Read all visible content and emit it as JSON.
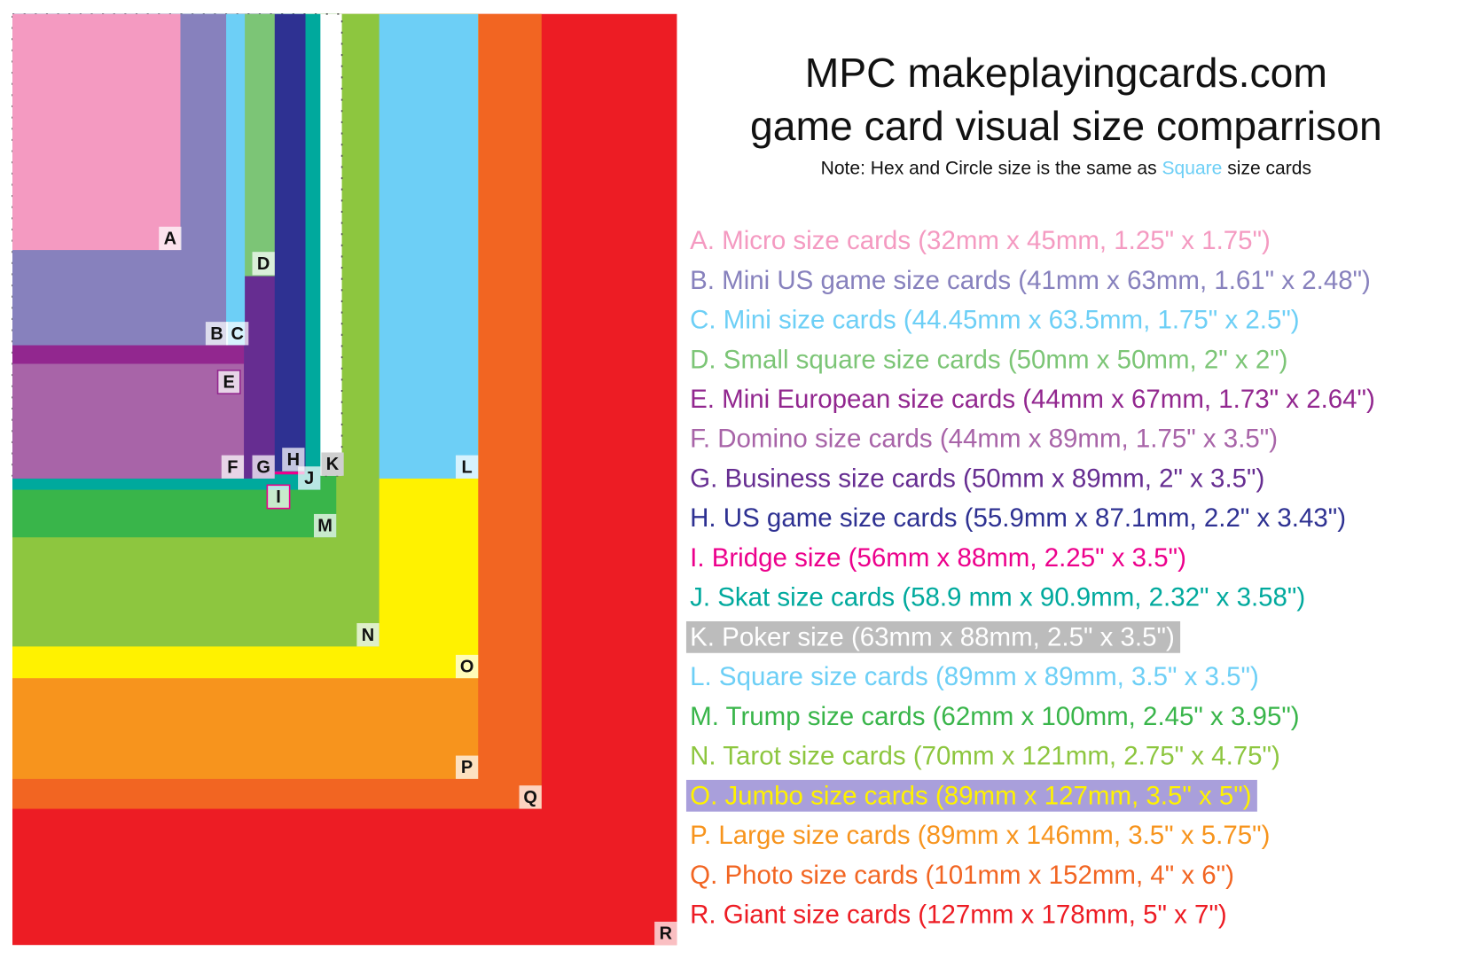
{
  "title": {
    "line1": "MPC makeplayingcards.com",
    "line2": "game card visual size comparrison"
  },
  "note": {
    "before": "Note: Hex and Circle size is the same as",
    "highlight": "Square",
    "after": "size cards"
  },
  "cards": [
    {
      "label": "A",
      "text": "A. Micro size cards (32mm x 45mm, 1.25\" x 1.75\")",
      "color": "#f49ac1"
    },
    {
      "label": "B",
      "text": "B. Mini US game size cards (41mm x 63mm, 1.61\" x 2.48\")",
      "color": "#8781bd"
    },
    {
      "label": "C",
      "text": "C. Mini size cards (44.45mm x 63.5mm, 1.75\" x 2.5\")",
      "color": "#6dcff6"
    },
    {
      "label": "D",
      "text": "D. Small square size cards (50mm x 50mm, 2\" x 2\")",
      "color": "#7cc576"
    },
    {
      "label": "E",
      "text": "E. Mini European size cards (44mm x 67mm, 1.73\" x 2.64\")",
      "color": "#92278f"
    },
    {
      "label": "F",
      "text": "F. Domino size cards (44mm x 89mm, 1.75\" x 3.5\")",
      "color": "#a864a8"
    },
    {
      "label": "G",
      "text": "G. Business size cards (50mm x 89mm, 2\" x 3.5\")",
      "color": "#662d91"
    },
    {
      "label": "H",
      "text": "H. US game size cards (55.9mm x 87.1mm, 2.2\" x 3.43\")",
      "color": "#2e3192"
    },
    {
      "label": "I",
      "text": "I. Bridge size (56mm x 88mm, 2.25\" x 3.5\")",
      "color": "#ec008c"
    },
    {
      "label": "J",
      "text": "J. Skat size cards (58.9 mm x 90.9mm, 2.32\" x 3.58\")",
      "color": "#00a99d"
    },
    {
      "label": "K",
      "text": "K. Poker size (63mm x 88mm, 2.5\" x 3.5\")",
      "color": "#ffffff",
      "highlight": "#bcbcbc"
    },
    {
      "label": "L",
      "text": "L. Square size cards (89mm x 89mm, 3.5\" x 3.5\")",
      "color": "#6dcff6"
    },
    {
      "label": "M",
      "text": "M. Trump size cards (62mm x 100mm, 2.45\" x 3.95\")",
      "color": "#39b54a"
    },
    {
      "label": "N",
      "text": "N. Tarot size cards (70mm x 121mm, 2.75\" x 4.75\")",
      "color": "#8dc63f"
    },
    {
      "label": "O",
      "text": "O. Jumbo size cards (89mm x 127mm, 3.5\" x 5\")",
      "color": "#fff200",
      "highlight": "#a99fdb"
    },
    {
      "label": "P",
      "text": "P. Large size cards (89mm x 146mm, 3.5\" x 5.75\")",
      "color": "#f7941d"
    },
    {
      "label": "Q",
      "text": "Q. Photo size cards (101mm x 152mm, 4\" x 6\")",
      "color": "#f26522"
    },
    {
      "label": "R",
      "text": "R. Giant size cards (127mm x 178mm, 5\" x 7\")",
      "color": "#ed1c24"
    }
  ]
}
